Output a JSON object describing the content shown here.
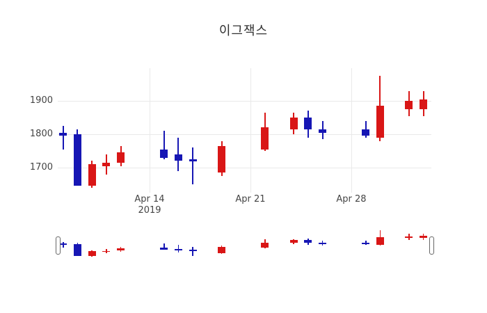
{
  "title": "이그잭스",
  "chart_data": {
    "type": "candlestick",
    "title": "이그잭스",
    "legend": "none",
    "grid": "on",
    "colors": {
      "increasing": "#d91616",
      "decreasing": "#1616b4"
    },
    "y_axis": {
      "ticks": [
        {
          "value": 1700,
          "label": "1700"
        },
        {
          "value": 1800,
          "label": "1800"
        },
        {
          "value": 1900,
          "label": "1900"
        }
      ],
      "range": [
        1625,
        1998
      ]
    },
    "x_axis": {
      "ticks": [
        {
          "label": "Apr 14",
          "sublabel": "2019",
          "day": 6
        },
        {
          "label": "Apr 21",
          "sublabel": "",
          "day": 13
        },
        {
          "label": "Apr 28",
          "sublabel": "",
          "day": 20
        }
      ],
      "first_date": "Apr 8 2019",
      "last_date": "May 3 2019"
    },
    "candles": [
      {
        "date": "Apr 8",
        "day": 0,
        "open": 1805,
        "high": 1825,
        "low": 1755,
        "close": 1795
      },
      {
        "date": "Apr 9",
        "day": 1,
        "open": 1800,
        "high": 1815,
        "low": 1645,
        "close": 1645
      },
      {
        "date": "Apr 10",
        "day": 2,
        "open": 1645,
        "high": 1720,
        "low": 1640,
        "close": 1710
      },
      {
        "date": "Apr 11",
        "day": 3,
        "open": 1705,
        "high": 1740,
        "low": 1680,
        "close": 1715
      },
      {
        "date": "Apr 12",
        "day": 4,
        "open": 1715,
        "high": 1765,
        "low": 1705,
        "close": 1745
      },
      {
        "date": "Apr 15",
        "day": 7,
        "open": 1755,
        "high": 1810,
        "low": 1725,
        "close": 1730
      },
      {
        "date": "Apr 16",
        "day": 8,
        "open": 1740,
        "high": 1790,
        "low": 1690,
        "close": 1720
      },
      {
        "date": "Apr 17",
        "day": 9,
        "open": 1725,
        "high": 1760,
        "low": 1650,
        "close": 1718
      },
      {
        "date": "Apr 19",
        "day": 11,
        "open": 1685,
        "high": 1780,
        "low": 1675,
        "close": 1765
      },
      {
        "date": "Apr 22",
        "day": 14,
        "open": 1755,
        "high": 1865,
        "low": 1750,
        "close": 1820
      },
      {
        "date": "Apr 24",
        "day": 16,
        "open": 1815,
        "high": 1865,
        "low": 1800,
        "close": 1850
      },
      {
        "date": "Apr 25",
        "day": 17,
        "open": 1850,
        "high": 1870,
        "low": 1790,
        "close": 1815
      },
      {
        "date": "Apr 26",
        "day": 18,
        "open": 1815,
        "high": 1840,
        "low": 1785,
        "close": 1805
      },
      {
        "date": "Apr 29",
        "day": 21,
        "open": 1815,
        "high": 1840,
        "low": 1790,
        "close": 1795
      },
      {
        "date": "Apr 30",
        "day": 22,
        "open": 1790,
        "high": 1975,
        "low": 1780,
        "close": 1885
      },
      {
        "date": "May 2",
        "day": 24,
        "open": 1875,
        "high": 1930,
        "low": 1855,
        "close": 1900
      },
      {
        "date": "May 3",
        "day": 25,
        "open": 1875,
        "high": 1930,
        "low": 1855,
        "close": 1905
      }
    ],
    "rangeslider": {
      "visible": true,
      "start": "Apr 8 2019",
      "end": "May 3 2019"
    }
  }
}
